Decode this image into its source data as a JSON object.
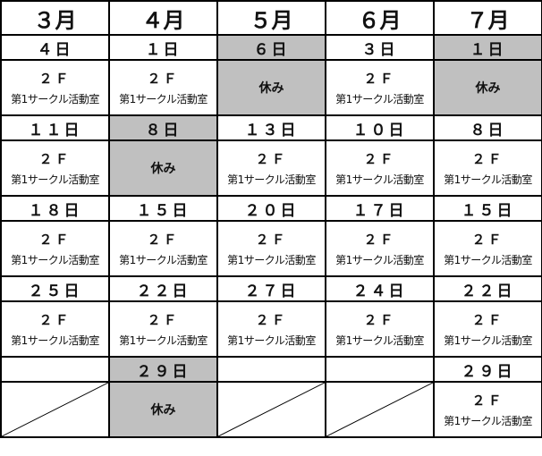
{
  "colors": {
    "closed_bg": "#c0c0c0",
    "border": "#000000"
  },
  "months": [
    "３月",
    "４月",
    "５月",
    "６月",
    "７月"
  ],
  "rows": [
    [
      {
        "date": "４日",
        "floor": "２Ｆ",
        "room": "第1サークル活動室"
      },
      {
        "date": "１日",
        "floor": "２Ｆ",
        "room": "第1サークル活動室"
      },
      {
        "date": "６日",
        "closed": true,
        "note": "休み"
      },
      {
        "date": "３日",
        "floor": "２Ｆ",
        "room": "第1サークル活動室"
      },
      {
        "date": "１日",
        "closed": true,
        "note": "休み"
      }
    ],
    [
      {
        "date": "１１日",
        "floor": "２Ｆ",
        "room": "第1サークル活動室"
      },
      {
        "date": "８日",
        "closed": true,
        "note": "休み"
      },
      {
        "date": "１３日",
        "floor": "２Ｆ",
        "room": "第1サークル活動室"
      },
      {
        "date": "１０日",
        "floor": "２Ｆ",
        "room": "第1サークル活動室"
      },
      {
        "date": "８日",
        "floor": "２Ｆ",
        "room": "第1サークル活動室"
      }
    ],
    [
      {
        "date": "１８日",
        "floor": "２Ｆ",
        "room": "第1サークル活動室"
      },
      {
        "date": "１５日",
        "floor": "２Ｆ",
        "room": "第1サークル活動室"
      },
      {
        "date": "２０日",
        "floor": "２Ｆ",
        "room": "第1サークル活動室"
      },
      {
        "date": "１７日",
        "floor": "２Ｆ",
        "room": "第1サークル活動室"
      },
      {
        "date": "１５日",
        "floor": "２Ｆ",
        "room": "第1サークル活動室"
      }
    ],
    [
      {
        "date": "２５日",
        "floor": "２Ｆ",
        "room": "第1サークル活動室"
      },
      {
        "date": "２２日",
        "floor": "２Ｆ",
        "room": "第1サークル活動室"
      },
      {
        "date": "２７日",
        "floor": "２Ｆ",
        "room": "第1サークル活動室"
      },
      {
        "date": "２４日",
        "floor": "２Ｆ",
        "room": "第1サークル活動室"
      },
      {
        "date": "２２日",
        "floor": "２Ｆ",
        "room": "第1サークル活動室"
      }
    ],
    [
      {
        "empty": true
      },
      {
        "date": "２９日",
        "closed": true,
        "note": "休み"
      },
      {
        "empty": true
      },
      {
        "empty": true
      },
      {
        "date": "２９日",
        "floor": "２Ｆ",
        "room": "第1サークル活動室"
      }
    ]
  ]
}
